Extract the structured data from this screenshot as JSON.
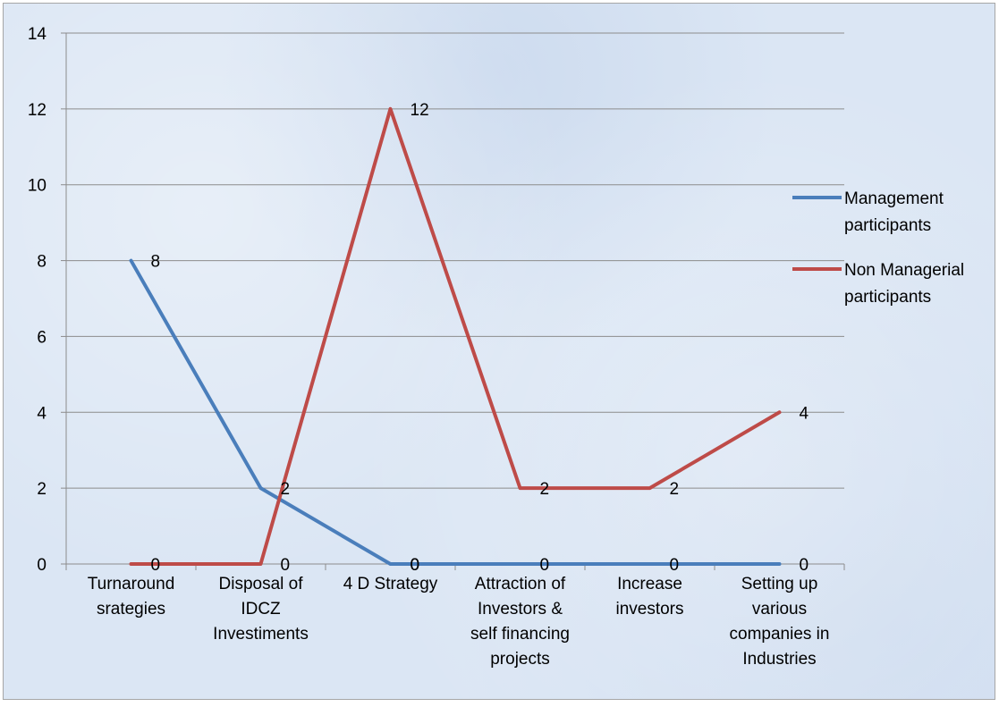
{
  "chart_data": {
    "type": "line",
    "categories": [
      [
        "Turnaround",
        "srategies"
      ],
      [
        "Disposal of",
        "IDCZ",
        "Investiments"
      ],
      [
        "4 D Strategy"
      ],
      [
        "Attraction of",
        "Investors &",
        "self financing",
        "projects"
      ],
      [
        "Increase",
        "investors"
      ],
      [
        "Setting up",
        "various",
        "companies in",
        "Industries"
      ]
    ],
    "series": [
      {
        "name": [
          "Management",
          "participants"
        ],
        "values": [
          8,
          2,
          0,
          0,
          0,
          0
        ],
        "color": "#4a7ebb",
        "labels": [
          "8",
          "",
          "0",
          "0",
          "0",
          "0"
        ]
      },
      {
        "name": [
          "Non Managerial",
          "participants"
        ],
        "values": [
          0,
          0,
          12,
          2,
          2,
          4
        ],
        "color": "#be4b48",
        "labels": [
          "0",
          "0",
          "",
          "2",
          "2",
          "4"
        ]
      }
    ],
    "extra_labels": [
      {
        "text": "2",
        "category": 1,
        "value": 2
      },
      {
        "text": "12",
        "category": 2,
        "value": 12
      },
      {
        "text": "0",
        "category": 2,
        "value": 0
      }
    ],
    "ylim": [
      0,
      14
    ],
    "yticks": [
      "0",
      "2",
      "4",
      "6",
      "8",
      "10",
      "12",
      "14"
    ],
    "grid": true,
    "legend": "right"
  }
}
